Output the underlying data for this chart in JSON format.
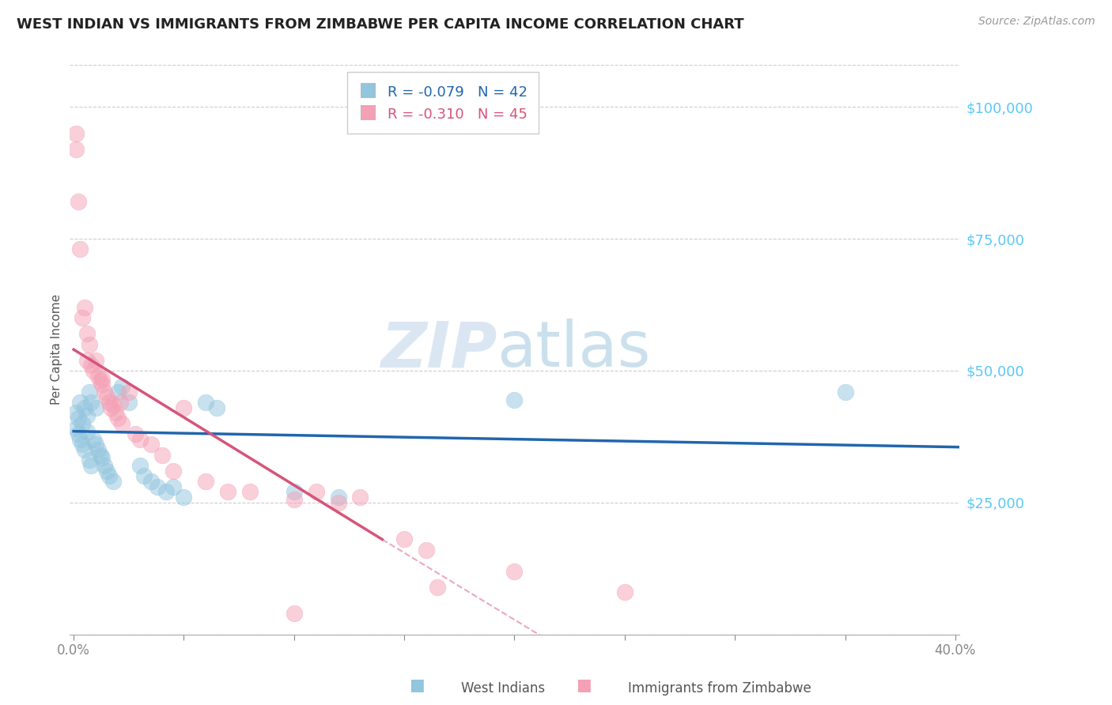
{
  "title": "WEST INDIAN VS IMMIGRANTS FROM ZIMBABWE PER CAPITA INCOME CORRELATION CHART",
  "source": "Source: ZipAtlas.com",
  "ylabel": "Per Capita Income",
  "yticks": [
    0,
    25000,
    50000,
    75000,
    100000
  ],
  "ytick_labels": [
    "",
    "$25,000",
    "$50,000",
    "$75,000",
    "$100,000"
  ],
  "xlim": [
    -0.002,
    0.402
  ],
  "ylim": [
    0,
    108000
  ],
  "legend_blue_r": "-0.079",
  "legend_blue_n": "42",
  "legend_pink_r": "-0.310",
  "legend_pink_n": "45",
  "label_blue": "West Indians",
  "label_pink": "Immigrants from Zimbabwe",
  "watermark_zip": "ZIP",
  "watermark_atlas": "atlas",
  "blue_color": "#92c5de",
  "pink_color": "#f4a0b5",
  "blue_line_color": "#2166ac",
  "pink_line_color": "#d6547a",
  "blue_points": [
    [
      0.001,
      42000
    ],
    [
      0.001,
      39000
    ],
    [
      0.002,
      41000
    ],
    [
      0.002,
      38000
    ],
    [
      0.003,
      44000
    ],
    [
      0.003,
      37000
    ],
    [
      0.004,
      40000
    ],
    [
      0.004,
      36000
    ],
    [
      0.005,
      43000
    ],
    [
      0.005,
      35000
    ],
    [
      0.006,
      41500
    ],
    [
      0.006,
      38500
    ],
    [
      0.007,
      46000
    ],
    [
      0.007,
      33000
    ],
    [
      0.008,
      44000
    ],
    [
      0.008,
      32000
    ],
    [
      0.009,
      37000
    ],
    [
      0.01,
      43000
    ],
    [
      0.01,
      36000
    ],
    [
      0.011,
      35000
    ],
    [
      0.012,
      34000
    ],
    [
      0.013,
      33500
    ],
    [
      0.014,
      32000
    ],
    [
      0.015,
      31000
    ],
    [
      0.016,
      30000
    ],
    [
      0.018,
      29000
    ],
    [
      0.02,
      46000
    ],
    [
      0.022,
      47000
    ],
    [
      0.025,
      44000
    ],
    [
      0.03,
      32000
    ],
    [
      0.032,
      30000
    ],
    [
      0.035,
      29000
    ],
    [
      0.038,
      28000
    ],
    [
      0.042,
      27000
    ],
    [
      0.045,
      28000
    ],
    [
      0.05,
      26000
    ],
    [
      0.06,
      44000
    ],
    [
      0.065,
      43000
    ],
    [
      0.1,
      27000
    ],
    [
      0.12,
      26000
    ],
    [
      0.2,
      44500
    ],
    [
      0.35,
      46000
    ]
  ],
  "pink_points": [
    [
      0.001,
      92000
    ],
    [
      0.001,
      95000
    ],
    [
      0.002,
      82000
    ],
    [
      0.003,
      73000
    ],
    [
      0.004,
      60000
    ],
    [
      0.005,
      62000
    ],
    [
      0.006,
      57000
    ],
    [
      0.006,
      52000
    ],
    [
      0.007,
      55000
    ],
    [
      0.008,
      51000
    ],
    [
      0.009,
      50000
    ],
    [
      0.01,
      52000
    ],
    [
      0.011,
      49000
    ],
    [
      0.012,
      48000
    ],
    [
      0.013,
      47500
    ],
    [
      0.013,
      48500
    ],
    [
      0.014,
      46000
    ],
    [
      0.015,
      45000
    ],
    [
      0.016,
      44000
    ],
    [
      0.017,
      43000
    ],
    [
      0.018,
      43500
    ],
    [
      0.019,
      42000
    ],
    [
      0.02,
      41000
    ],
    [
      0.021,
      44000
    ],
    [
      0.022,
      40000
    ],
    [
      0.025,
      46000
    ],
    [
      0.028,
      38000
    ],
    [
      0.03,
      37000
    ],
    [
      0.035,
      36000
    ],
    [
      0.04,
      34000
    ],
    [
      0.045,
      31000
    ],
    [
      0.05,
      43000
    ],
    [
      0.06,
      29000
    ],
    [
      0.07,
      27000
    ],
    [
      0.08,
      27000
    ],
    [
      0.1,
      25500
    ],
    [
      0.11,
      27000
    ],
    [
      0.12,
      25000
    ],
    [
      0.13,
      26000
    ],
    [
      0.15,
      18000
    ],
    [
      0.16,
      16000
    ],
    [
      0.165,
      9000
    ],
    [
      0.2,
      12000
    ],
    [
      0.25,
      8000
    ],
    [
      0.1,
      4000
    ]
  ]
}
